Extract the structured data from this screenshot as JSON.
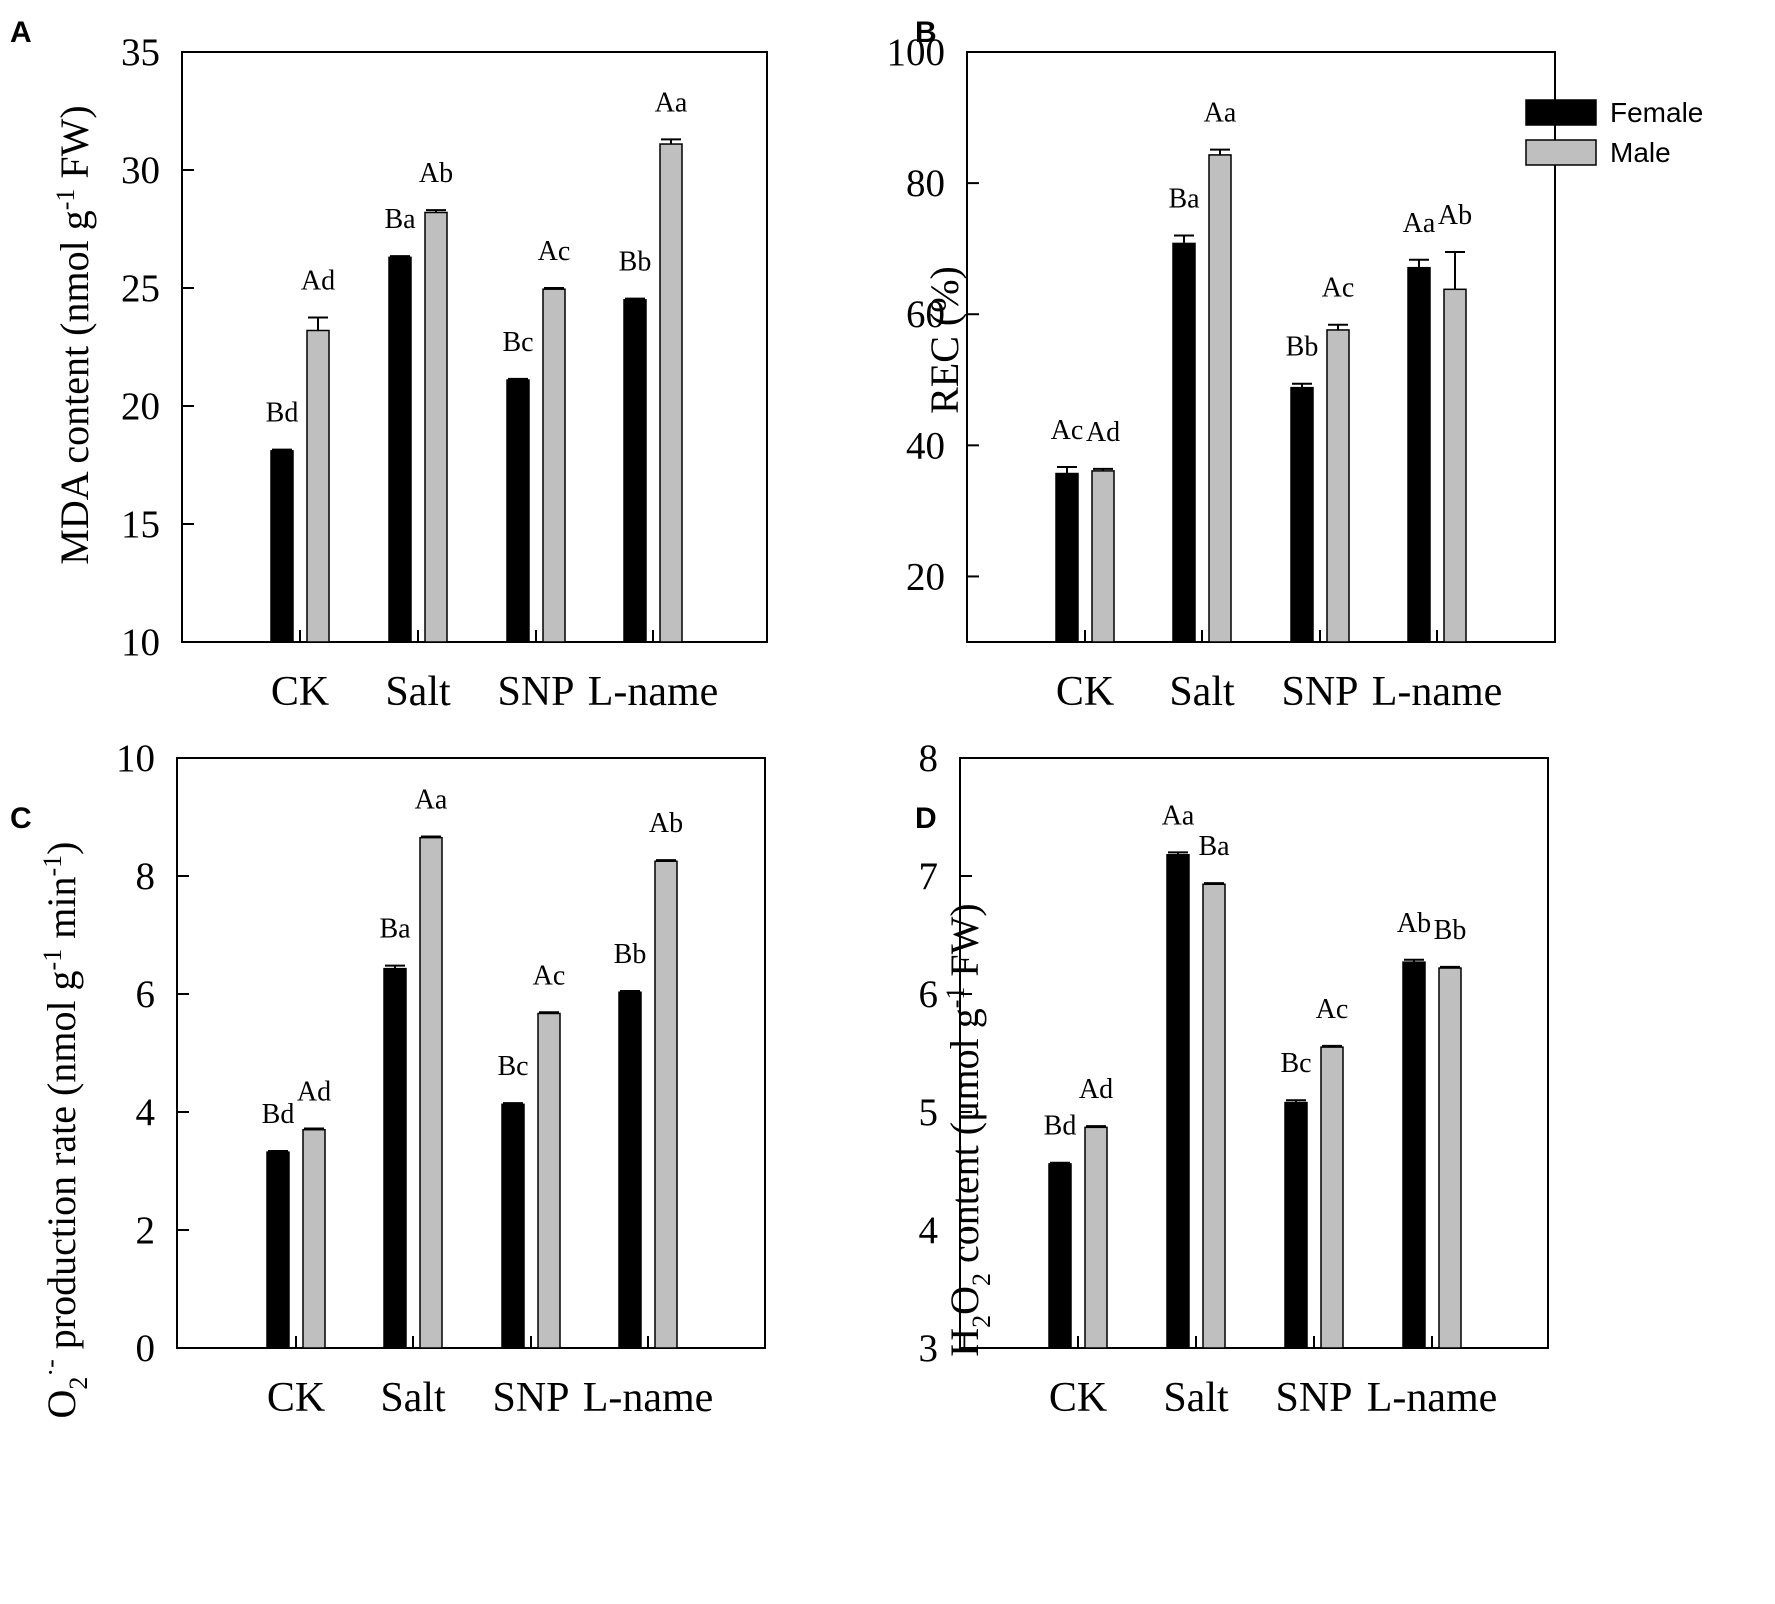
{
  "colors": {
    "female": "#000000",
    "male": "#bfbfbf",
    "axis": "#000000"
  },
  "legend": {
    "entries": [
      "Female",
      "Male"
    ],
    "placement": "top-right of panel B"
  },
  "chart_data": [
    {
      "type": "bar",
      "panel": "A",
      "categories": [
        "CK",
        "Salt",
        "SNP",
        "L-name"
      ],
      "series": [
        {
          "name": "Female",
          "values": [
            18.1,
            26.3,
            21.1,
            24.5
          ],
          "errors": [
            0.05,
            0.05,
            0.05,
            0.05
          ],
          "labels": [
            "Bd",
            "Ba",
            "Bc",
            "Bb"
          ]
        },
        {
          "name": "Male",
          "values": [
            23.2,
            28.2,
            24.95,
            31.1
          ],
          "errors": [
            0.55,
            0.1,
            0.05,
            0.2
          ],
          "labels": [
            "Ad",
            "Ab",
            "Ac",
            "Aa"
          ]
        }
      ],
      "ylabel": {
        "pre": "MDA content (nmol g",
        "sup": "-1",
        "post": " FW)"
      },
      "ylim": [
        10,
        35
      ],
      "yticks": [
        10,
        15,
        20,
        25,
        30,
        35
      ],
      "legend": false
    },
    {
      "type": "bar",
      "panel": "B",
      "categories": [
        "CK",
        "Salt",
        "SNP",
        "L-name"
      ],
      "series": [
        {
          "name": "Female",
          "values": [
            35.7,
            70.8,
            48.8,
            67.1
          ],
          "errors": [
            1.0,
            1.2,
            0.6,
            1.2
          ],
          "labels": [
            "Ac",
            "Ba",
            "Bb",
            "Aa"
          ]
        },
        {
          "name": "Male",
          "values": [
            36.1,
            84.3,
            57.6,
            63.8
          ],
          "errors": [
            0.3,
            0.8,
            0.8,
            5.7
          ],
          "labels": [
            "Ad",
            "Aa",
            "Ac",
            "Ab"
          ]
        }
      ],
      "ylabel": {
        "pre": "REC (%)",
        "sup": "",
        "post": ""
      },
      "ylim": [
        10,
        100
      ],
      "yticks": [
        20,
        40,
        60,
        80,
        100
      ],
      "legend": true
    },
    {
      "type": "bar",
      "panel": "C",
      "categories": [
        "CK",
        "Salt",
        "SNP",
        "L-name"
      ],
      "series": [
        {
          "name": "Female",
          "values": [
            3.32,
            6.43,
            4.13,
            6.03
          ],
          "errors": [
            0.02,
            0.05,
            0.02,
            0.02
          ],
          "labels": [
            "Bd",
            "Ba",
            "Bc",
            "Bb"
          ]
        },
        {
          "name": "Male",
          "values": [
            3.7,
            8.65,
            5.67,
            8.25
          ],
          "errors": [
            0.02,
            0.02,
            0.02,
            0.02
          ],
          "labels": [
            "Ad",
            "Aa",
            "Ac",
            "Ab"
          ]
        }
      ],
      "ylabel": {
        "pre": "O",
        "sub": "2",
        "sup": "·-",
        "post": " production rate (nmol g",
        "sup2": "-1",
        "mid": " min",
        "sup3": "-1",
        "end": ")"
      },
      "ylim": [
        0,
        10
      ],
      "yticks": [
        0,
        2,
        4,
        6,
        8,
        10
      ],
      "legend": false
    },
    {
      "type": "bar",
      "panel": "D",
      "categories": [
        "CK",
        "Salt",
        "SNP",
        "L-name"
      ],
      "series": [
        {
          "name": "Female",
          "values": [
            4.56,
            7.18,
            5.08,
            6.27
          ],
          "errors": [
            0.01,
            0.02,
            0.02,
            0.02
          ],
          "labels": [
            "Bd",
            "Aa",
            "Bc",
            "Ab"
          ]
        },
        {
          "name": "Male",
          "values": [
            4.87,
            6.93,
            5.55,
            6.22
          ],
          "errors": [
            0.01,
            0.01,
            0.01,
            0.01
          ],
          "labels": [
            "Ad",
            "Ba",
            "Ac",
            "Bb"
          ]
        }
      ],
      "ylabel": {
        "pre": "H",
        "sub": "2",
        "mid": "O",
        "sub2": "2",
        "post": " content (μmol g",
        "sup": "-1",
        "end": " FW)"
      },
      "ylim": [
        3,
        8
      ],
      "yticks": [
        3,
        4,
        5,
        6,
        7,
        8
      ],
      "legend": false
    }
  ]
}
